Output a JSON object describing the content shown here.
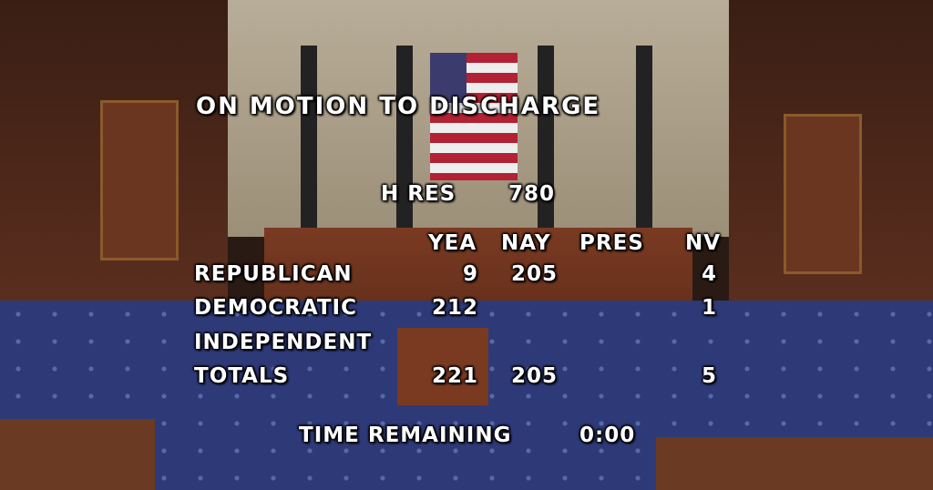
{
  "title": "ON MOTION TO DISCHARGE",
  "measure": {
    "label": "H RES",
    "number": "780"
  },
  "columns": [
    "YEA",
    "NAY",
    "PRES",
    "NV"
  ],
  "rows": [
    {
      "party": "REPUBLICAN",
      "yea": "9",
      "nay": "205",
      "pres": "",
      "nv": "4"
    },
    {
      "party": "DEMOCRATIC",
      "yea": "212",
      "nay": "",
      "pres": "",
      "nv": "1"
    },
    {
      "party": "INDEPENDENT",
      "yea": "",
      "nay": "",
      "pres": "",
      "nv": ""
    },
    {
      "party": "TOTALS",
      "yea": "221",
      "nay": "205",
      "pres": "",
      "nv": "5"
    }
  ],
  "time_remaining": {
    "label": "TIME REMAINING",
    "value": "0:00"
  }
}
